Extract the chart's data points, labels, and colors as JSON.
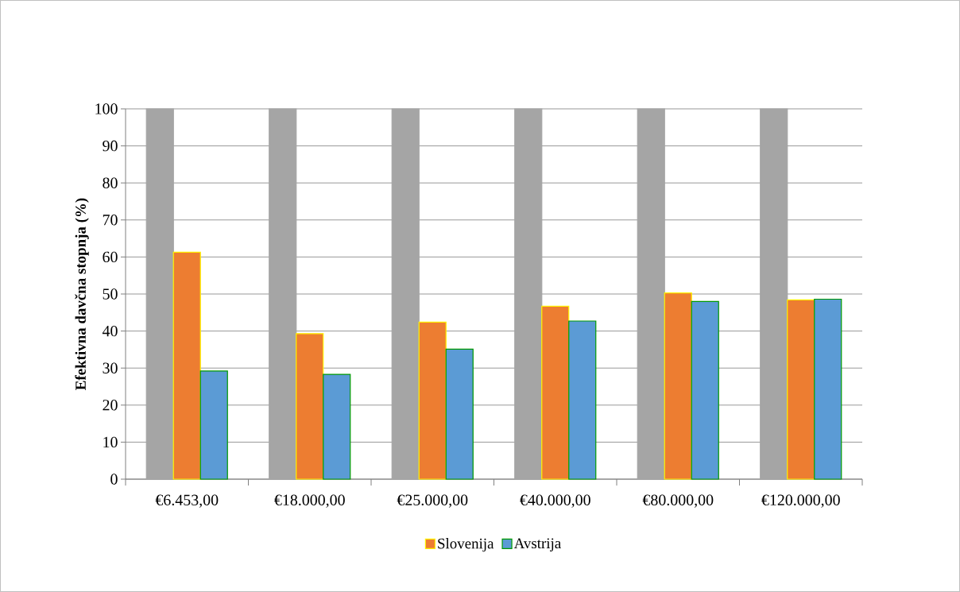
{
  "chart_data": {
    "type": "bar",
    "ylabel": "Efektivna davčna stopnja (%)",
    "categories": [
      "€6.453,00",
      "€18.000,00",
      "€25.000,00",
      "€40.000,00",
      "€80.000,00",
      "€120.000,00"
    ],
    "series": [
      {
        "color": "#a5a5a5",
        "values": [
          100,
          100,
          100,
          100,
          100,
          100
        ]
      },
      {
        "name": "Slovenija",
        "color": "#ed7d31",
        "values": [
          61.3,
          39.3,
          42.4,
          46.7,
          50.3,
          48.4
        ]
      },
      {
        "name": "Avstrija",
        "color": "#5b9bd5",
        "values": [
          29.2,
          28.3,
          35.1,
          42.7,
          48.0,
          48.6
        ]
      }
    ],
    "ylim": [
      0,
      100
    ],
    "yticks": [
      0,
      10,
      20,
      30,
      40,
      50,
      60,
      70,
      80,
      90,
      100
    ],
    "grid": "y",
    "legend": "bottom"
  }
}
